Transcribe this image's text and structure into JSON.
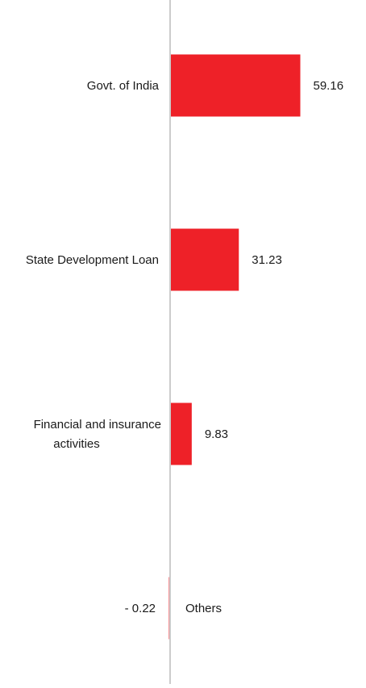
{
  "chart_data": {
    "type": "bar",
    "orientation": "horizontal",
    "categories": [
      "Govt. of India",
      "State Development Loan",
      "Financial and insurance activities",
      "Others"
    ],
    "category_lines": [
      [
        "Govt. of India"
      ],
      [
        "State Development Loan"
      ],
      [
        "Financial and insurance",
        "activities"
      ],
      [
        "Others"
      ]
    ],
    "values": [
      59.16,
      31.23,
      9.83,
      -0.22
    ],
    "value_labels": [
      "59.16",
      "31.23",
      "9.83",
      "-  0.22"
    ],
    "bar_color": "#ee2128",
    "axis_color": "#cccccc",
    "xlim": [
      -1,
      69
    ],
    "title": "",
    "xlabel": "",
    "ylabel": "",
    "grid": false,
    "legend": "none"
  }
}
